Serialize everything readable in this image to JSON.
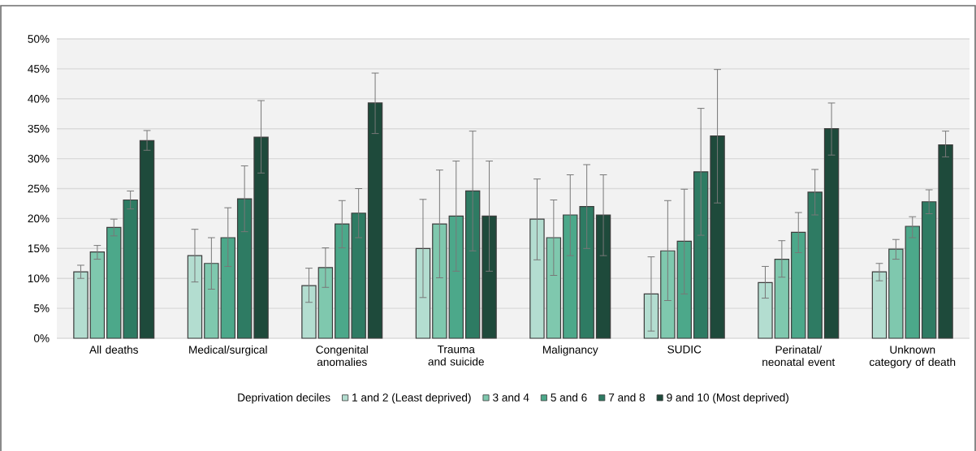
{
  "chart_data": {
    "type": "bar",
    "categories": [
      "All deaths",
      "Medical/surgical",
      "Congenital anomalies",
      "Trauma and suicide",
      "Malignancy",
      "SUDIC",
      "Perinatal/ neonatal event",
      "Unknown category of death"
    ],
    "legend_title": "Deprivation deciles",
    "series": [
      {
        "name": "1 and 2 (Least deprived)",
        "color": "#b3ddd0",
        "values": [
          11.1,
          13.8,
          8.8,
          15.0,
          19.9,
          7.4,
          9.3,
          11.1
        ],
        "errors": [
          [
            10.0,
            12.2
          ],
          [
            9.4,
            18.2
          ],
          [
            6.0,
            11.7
          ],
          [
            6.8,
            23.2
          ],
          [
            13.1,
            26.6
          ],
          [
            1.2,
            13.6
          ],
          [
            6.7,
            12.0
          ],
          [
            9.6,
            12.5
          ]
        ]
      },
      {
        "name": "3 and 4",
        "color": "#7fc8ae",
        "values": [
          14.4,
          12.5,
          11.8,
          19.1,
          16.8,
          14.6,
          13.2,
          14.9
        ],
        "errors": [
          [
            13.2,
            15.5
          ],
          [
            8.2,
            16.8
          ],
          [
            8.5,
            15.1
          ],
          [
            10.1,
            28.1
          ],
          [
            10.5,
            23.1
          ],
          [
            6.3,
            23.0
          ],
          [
            10.2,
            16.3
          ],
          [
            13.2,
            16.5
          ]
        ]
      },
      {
        "name": "5 and 6",
        "color": "#4ca88a",
        "values": [
          18.5,
          16.8,
          19.1,
          20.4,
          20.6,
          16.2,
          17.7,
          18.7
        ],
        "errors": [
          [
            17.1,
            19.9
          ],
          [
            12.0,
            21.8
          ],
          [
            15.1,
            23.0
          ],
          [
            11.2,
            29.6
          ],
          [
            13.8,
            27.3
          ],
          [
            7.4,
            24.9
          ],
          [
            14.3,
            21.0
          ],
          [
            16.8,
            20.3
          ]
        ]
      },
      {
        "name": "7 and 8",
        "color": "#2e7b63",
        "values": [
          23.1,
          23.3,
          20.9,
          24.6,
          22.0,
          27.8,
          24.4,
          22.8
        ],
        "errors": [
          [
            21.6,
            24.6
          ],
          [
            17.8,
            28.8
          ],
          [
            16.8,
            25.0
          ],
          [
            14.6,
            34.6
          ],
          [
            15.0,
            29.0
          ],
          [
            17.2,
            38.4
          ],
          [
            20.6,
            28.2
          ],
          [
            20.8,
            24.8
          ]
        ]
      },
      {
        "name": "9 and 10 (Most deprived)",
        "color": "#1e4a3b",
        "values": [
          33.0,
          33.6,
          39.3,
          20.4,
          20.6,
          33.8,
          35.0,
          32.3
        ],
        "errors": [
          [
            31.4,
            34.7
          ],
          [
            27.6,
            39.7
          ],
          [
            34.2,
            44.3
          ],
          [
            11.2,
            29.6
          ],
          [
            13.8,
            27.3
          ],
          [
            22.6,
            44.9
          ],
          [
            30.6,
            39.3
          ],
          [
            30.3,
            34.6
          ]
        ]
      }
    ],
    "ylim": [
      0,
      50
    ],
    "yticks": [
      {
        "value": 0,
        "label": "0%"
      },
      {
        "value": 5,
        "label": "5%"
      },
      {
        "value": 10,
        "label": "10%"
      },
      {
        "value": 15,
        "label": "15%"
      },
      {
        "value": 20,
        "label": "20%"
      },
      {
        "value": 25,
        "label": "25%"
      },
      {
        "value": 30,
        "label": "30%"
      },
      {
        "value": 35,
        "label": "35%"
      },
      {
        "value": 40,
        "label": "40%"
      },
      {
        "value": 45,
        "label": "45%"
      },
      {
        "value": 50,
        "label": "50%"
      }
    ],
    "grid": "y",
    "legend": "bottom"
  }
}
